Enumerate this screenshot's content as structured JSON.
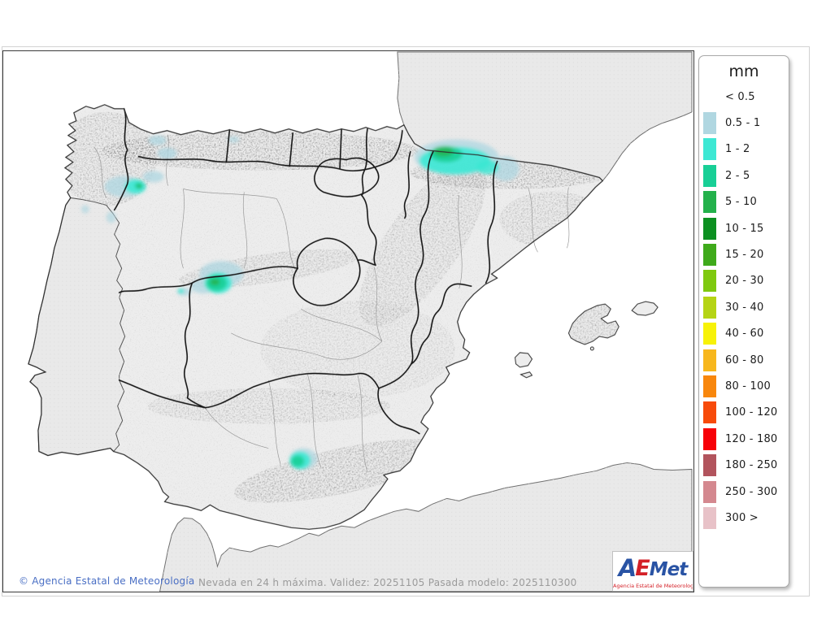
{
  "map": {
    "caption": "Nevada en 24 h máxima. Validez: 20251105 Pasada modelo: 2025110300",
    "copyright": "© Agencia Estatal de Meteorología",
    "sea_color": "#ffffff",
    "land_color": "#ededed",
    "neighbor_land_color": "#e9e9e9",
    "coast_color": "#2e2e2e",
    "region_border_color": "#151515",
    "province_border_color": "#9a9a9a"
  },
  "legend": {
    "title": "mm",
    "items": [
      {
        "label": "< 0.5",
        "color": null
      },
      {
        "label": "0.5 - 1",
        "color": "#b0d7e1"
      },
      {
        "label": "1 - 2",
        "color": "#3de8d4"
      },
      {
        "label": "2 - 5",
        "color": "#18cf96"
      },
      {
        "label": "5 - 10",
        "color": "#23b14b"
      },
      {
        "label": "10 - 15",
        "color": "#0c9021"
      },
      {
        "label": "15 - 20",
        "color": "#3faa1b"
      },
      {
        "label": "20 - 30",
        "color": "#7fc90f"
      },
      {
        "label": "30 - 40",
        "color": "#b5d414"
      },
      {
        "label": "40 - 60",
        "color": "#f7f208"
      },
      {
        "label": "60 - 80",
        "color": "#f7b71d"
      },
      {
        "label": "80 - 100",
        "color": "#f8870d"
      },
      {
        "label": "100 - 120",
        "color": "#f74a0a"
      },
      {
        "label": "120 - 180",
        "color": "#f70108"
      },
      {
        "label": "180 - 250",
        "color": "#b2545d"
      },
      {
        "label": "250 - 300",
        "color": "#d4888f"
      },
      {
        "label": "300 >",
        "color": "#e8c2c8"
      }
    ]
  },
  "branding": {
    "logo_a": "A",
    "logo_e": "E",
    "logo_met": "Met",
    "logo_subtitle": "Agencia Estatal de Meteorología"
  }
}
